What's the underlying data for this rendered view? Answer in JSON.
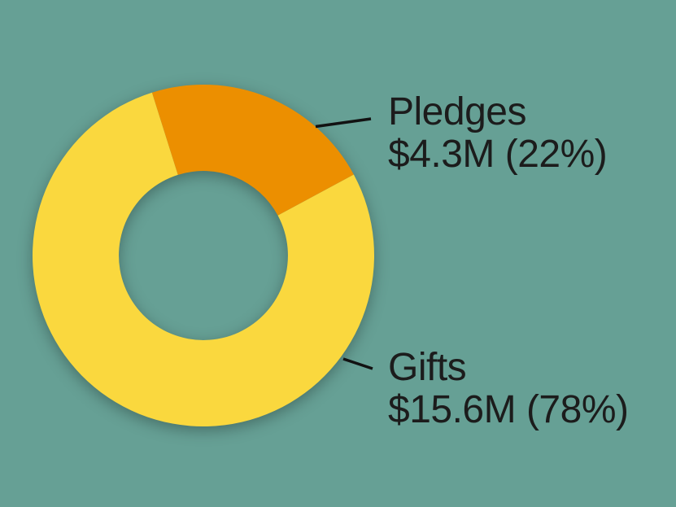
{
  "chart_data": {
    "type": "pie",
    "variant": "donut",
    "title": "",
    "categories": [
      "Pledges",
      "Gifts"
    ],
    "values": [
      4.3,
      15.6
    ],
    "unit": "$M",
    "segments": [
      {
        "label": "Pledges",
        "value": 4.3,
        "percent": 22,
        "display_value": "$4.3M (22%)",
        "color": "#EC8F00"
      },
      {
        "label": "Gifts",
        "value": 15.6,
        "percent": 78,
        "display_value": "$15.6M (78%)",
        "color": "#FAD83E"
      }
    ],
    "start_angle_deg": -17.5,
    "direction": "clockwise",
    "inner_radius_ratio": 0.495,
    "legend_position": "none",
    "label_style": "outside-callouts-with-leader-lines"
  },
  "callouts": [
    {
      "label": "Pledges",
      "value": "$4.3M (22%)"
    },
    {
      "label": "Gifts",
      "value": "$15.6M (78%)"
    }
  ],
  "colors": {
    "background": "#66A095",
    "slice_pledges": "#EC8F00",
    "slice_gifts": "#FAD83E",
    "label_text": "#1C1C1C",
    "leader_line": "#121212"
  }
}
